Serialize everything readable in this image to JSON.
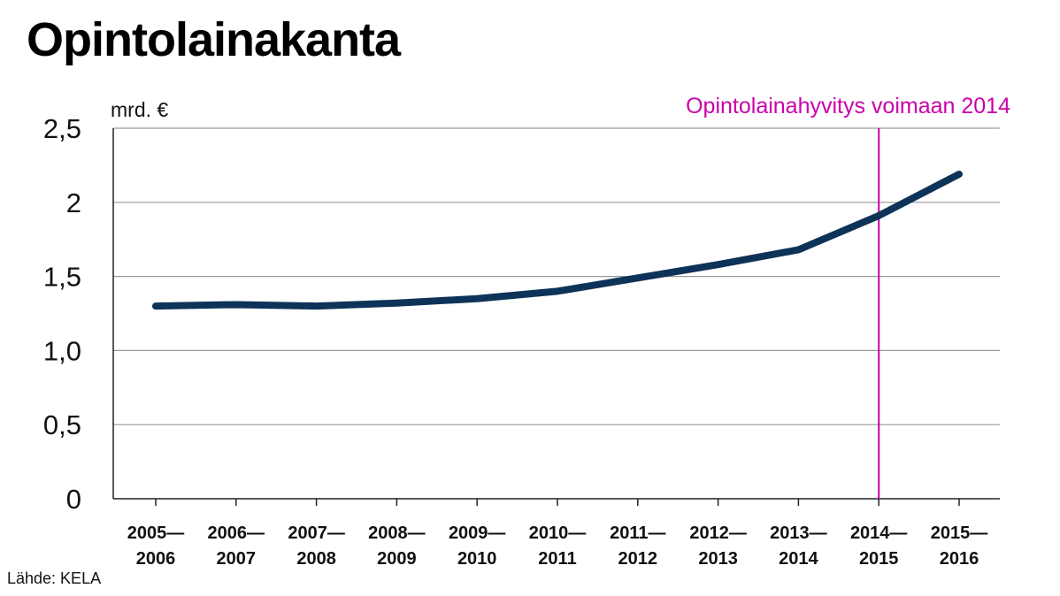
{
  "title": "Opintolainakanta",
  "source": "Lähde: KELA",
  "colors": {
    "line": "#0d3358",
    "annotation": "#cc00aa",
    "grid": "#999999",
    "axis": "#222222"
  },
  "chart_data": {
    "type": "line",
    "title": "Opintolainakanta",
    "ylabel": "mrd. €",
    "xlabel": "",
    "ylim": [
      0,
      2.5
    ],
    "y_ticks": [
      {
        "value": 0,
        "label": "0"
      },
      {
        "value": 0.5,
        "label": "0,5"
      },
      {
        "value": 1.0,
        "label": "1,0"
      },
      {
        "value": 1.5,
        "label": "1,5"
      },
      {
        "value": 2.0,
        "label": "2"
      },
      {
        "value": 2.5,
        "label": "2,5"
      }
    ],
    "grid": true,
    "categories": [
      {
        "line1": "2005—",
        "line2": "2006"
      },
      {
        "line1": "2006—",
        "line2": "2007"
      },
      {
        "line1": "2007—",
        "line2": "2008"
      },
      {
        "line1": "2008—",
        "line2": "2009"
      },
      {
        "line1": "2009—",
        "line2": "2010"
      },
      {
        "line1": "2010—",
        "line2": "2011"
      },
      {
        "line1": "2011—",
        "line2": "2012"
      },
      {
        "line1": "2012—",
        "line2": "2013"
      },
      {
        "line1": "2013—",
        "line2": "2014"
      },
      {
        "line1": "2014—",
        "line2": "2015"
      },
      {
        "line1": "2015—",
        "line2": "2016"
      }
    ],
    "values": [
      1.3,
      1.31,
      1.3,
      1.32,
      1.35,
      1.4,
      1.49,
      1.58,
      1.68,
      1.91,
      2.19
    ],
    "annotation": {
      "text": "Opintolainahyvitys voimaan 2014",
      "category_index": 9
    }
  }
}
